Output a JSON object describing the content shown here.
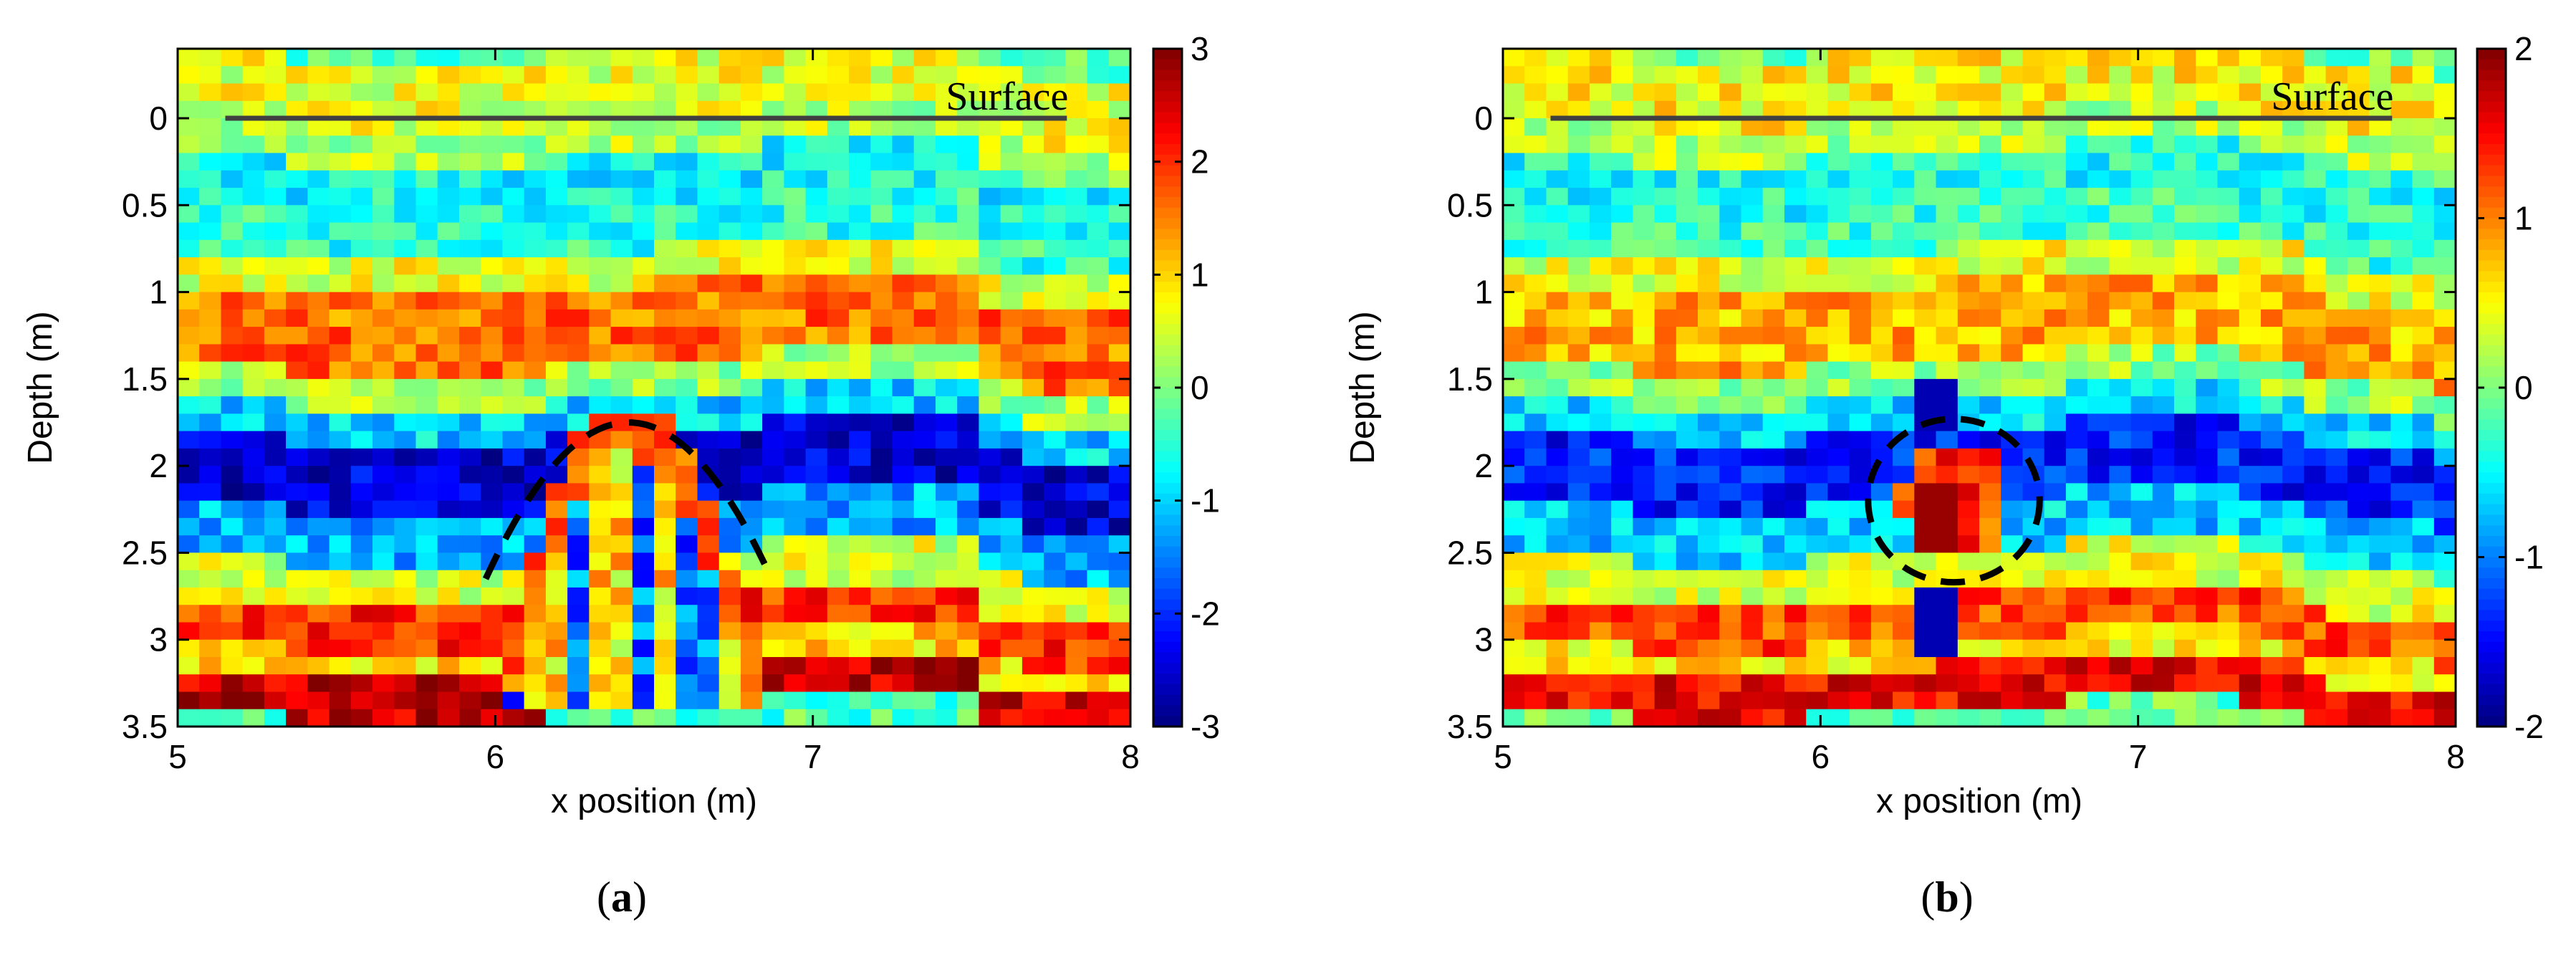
{
  "chart_data": [
    {
      "type": "heatmap",
      "panel": "a",
      "caption": {
        "open": "(",
        "letter": "a",
        "close": ")"
      },
      "xlabel": "x position (m)",
      "ylabel": "Depth (m)",
      "xlim": [
        5,
        8
      ],
      "ylim": [
        -0.4,
        3.5
      ],
      "xticks": [
        5,
        6,
        7,
        8
      ],
      "yticks": [
        0,
        0.5,
        1,
        1.5,
        2,
        2.5,
        3,
        3.5
      ],
      "yticklabels": [
        "0",
        "0.5",
        "1",
        "1.5",
        "2",
        "2.5",
        "3",
        "3.5"
      ],
      "colorbar": {
        "min": -3,
        "max": 3,
        "ticks": [
          3,
          2,
          1,
          0,
          -1,
          -2,
          -3
        ]
      },
      "colormap": "jet",
      "surface_label": "Surface",
      "surface_line": {
        "x": [
          5.15,
          7.8
        ],
        "depth": 0
      },
      "annotation": {
        "shape": "hyperbola",
        "x_center": 6.42,
        "apex_depth": 1.75,
        "x_span": [
          5.97,
          6.85
        ],
        "end_depth": 2.65
      },
      "bands": [
        {
          "depth_from": -0.4,
          "depth_to": 0.0,
          "value": 0.6
        },
        {
          "depth_from": 0.0,
          "depth_to": 0.2,
          "value": 0.3
        },
        {
          "depth_from": 0.2,
          "depth_to": 0.5,
          "value": -0.7
        },
        {
          "depth_from": 0.5,
          "depth_to": 0.75,
          "value": -0.5
        },
        {
          "depth_from": 0.75,
          "depth_to": 0.95,
          "value": 0.6
        },
        {
          "depth_from": 0.95,
          "depth_to": 1.4,
          "value": 1.6
        },
        {
          "depth_from": 1.4,
          "depth_to": 1.6,
          "value": 0.2
        },
        {
          "depth_from": 1.6,
          "depth_to": 1.8,
          "value": -1.0
        },
        {
          "depth_from": 1.8,
          "depth_to": 2.2,
          "value": -2.5
        },
        {
          "depth_from": 2.2,
          "depth_to": 2.5,
          "value": -1.2
        },
        {
          "depth_from": 2.5,
          "depth_to": 2.75,
          "value": 0.5
        },
        {
          "depth_from": 2.75,
          "depth_to": 3.0,
          "value": 2.0
        },
        {
          "depth_from": 3.0,
          "depth_to": 3.15,
          "value": 1.0
        },
        {
          "depth_from": 3.15,
          "depth_to": 3.4,
          "value": 2.6
        },
        {
          "depth_from": 3.4,
          "depth_to": 3.5,
          "value": -0.3
        }
      ]
    },
    {
      "type": "heatmap",
      "panel": "b",
      "caption": {
        "open": "(",
        "letter": "b",
        "close": ")"
      },
      "xlabel": "x position (m)",
      "ylabel": "Depth (m)",
      "xlim": [
        5,
        8
      ],
      "ylim": [
        -0.4,
        3.5
      ],
      "xticks": [
        5,
        6,
        7,
        8
      ],
      "yticks": [
        0,
        0.5,
        1,
        1.5,
        2,
        2.5,
        3,
        3.5
      ],
      "yticklabels": [
        "0",
        "0.5",
        "1",
        "1.5",
        "2",
        "2.5",
        "3",
        "3.5"
      ],
      "colorbar": {
        "min": -2,
        "max": 2,
        "ticks": [
          2,
          1,
          0,
          -1,
          -2
        ]
      },
      "colormap": "jet",
      "surface_label": "Surface",
      "surface_line": {
        "x": [
          5.15,
          7.8
        ],
        "depth": 0
      },
      "annotation": {
        "shape": "circle",
        "x_center": 6.42,
        "depth_center": 2.2,
        "x_radius": 0.27,
        "depth_radius": 0.47
      },
      "bands": [
        {
          "depth_from": -0.4,
          "depth_to": 0.0,
          "value": 0.5
        },
        {
          "depth_from": 0.0,
          "depth_to": 0.2,
          "value": 0.2
        },
        {
          "depth_from": 0.2,
          "depth_to": 0.5,
          "value": -0.4
        },
        {
          "depth_from": 0.5,
          "depth_to": 0.75,
          "value": -0.3
        },
        {
          "depth_from": 0.75,
          "depth_to": 0.95,
          "value": 0.4
        },
        {
          "depth_from": 0.95,
          "depth_to": 1.4,
          "value": 0.8
        },
        {
          "depth_from": 1.4,
          "depth_to": 1.6,
          "value": 0.1
        },
        {
          "depth_from": 1.6,
          "depth_to": 1.8,
          "value": -0.6
        },
        {
          "depth_from": 1.8,
          "depth_to": 2.2,
          "value": -1.4
        },
        {
          "depth_from": 2.2,
          "depth_to": 2.5,
          "value": -0.7
        },
        {
          "depth_from": 2.5,
          "depth_to": 2.75,
          "value": 0.4
        },
        {
          "depth_from": 2.75,
          "depth_to": 3.0,
          "value": 1.2
        },
        {
          "depth_from": 3.0,
          "depth_to": 3.15,
          "value": 0.6
        },
        {
          "depth_from": 3.15,
          "depth_to": 3.4,
          "value": 1.5
        },
        {
          "depth_from": 3.4,
          "depth_to": 3.5,
          "value": -0.1
        }
      ]
    }
  ]
}
